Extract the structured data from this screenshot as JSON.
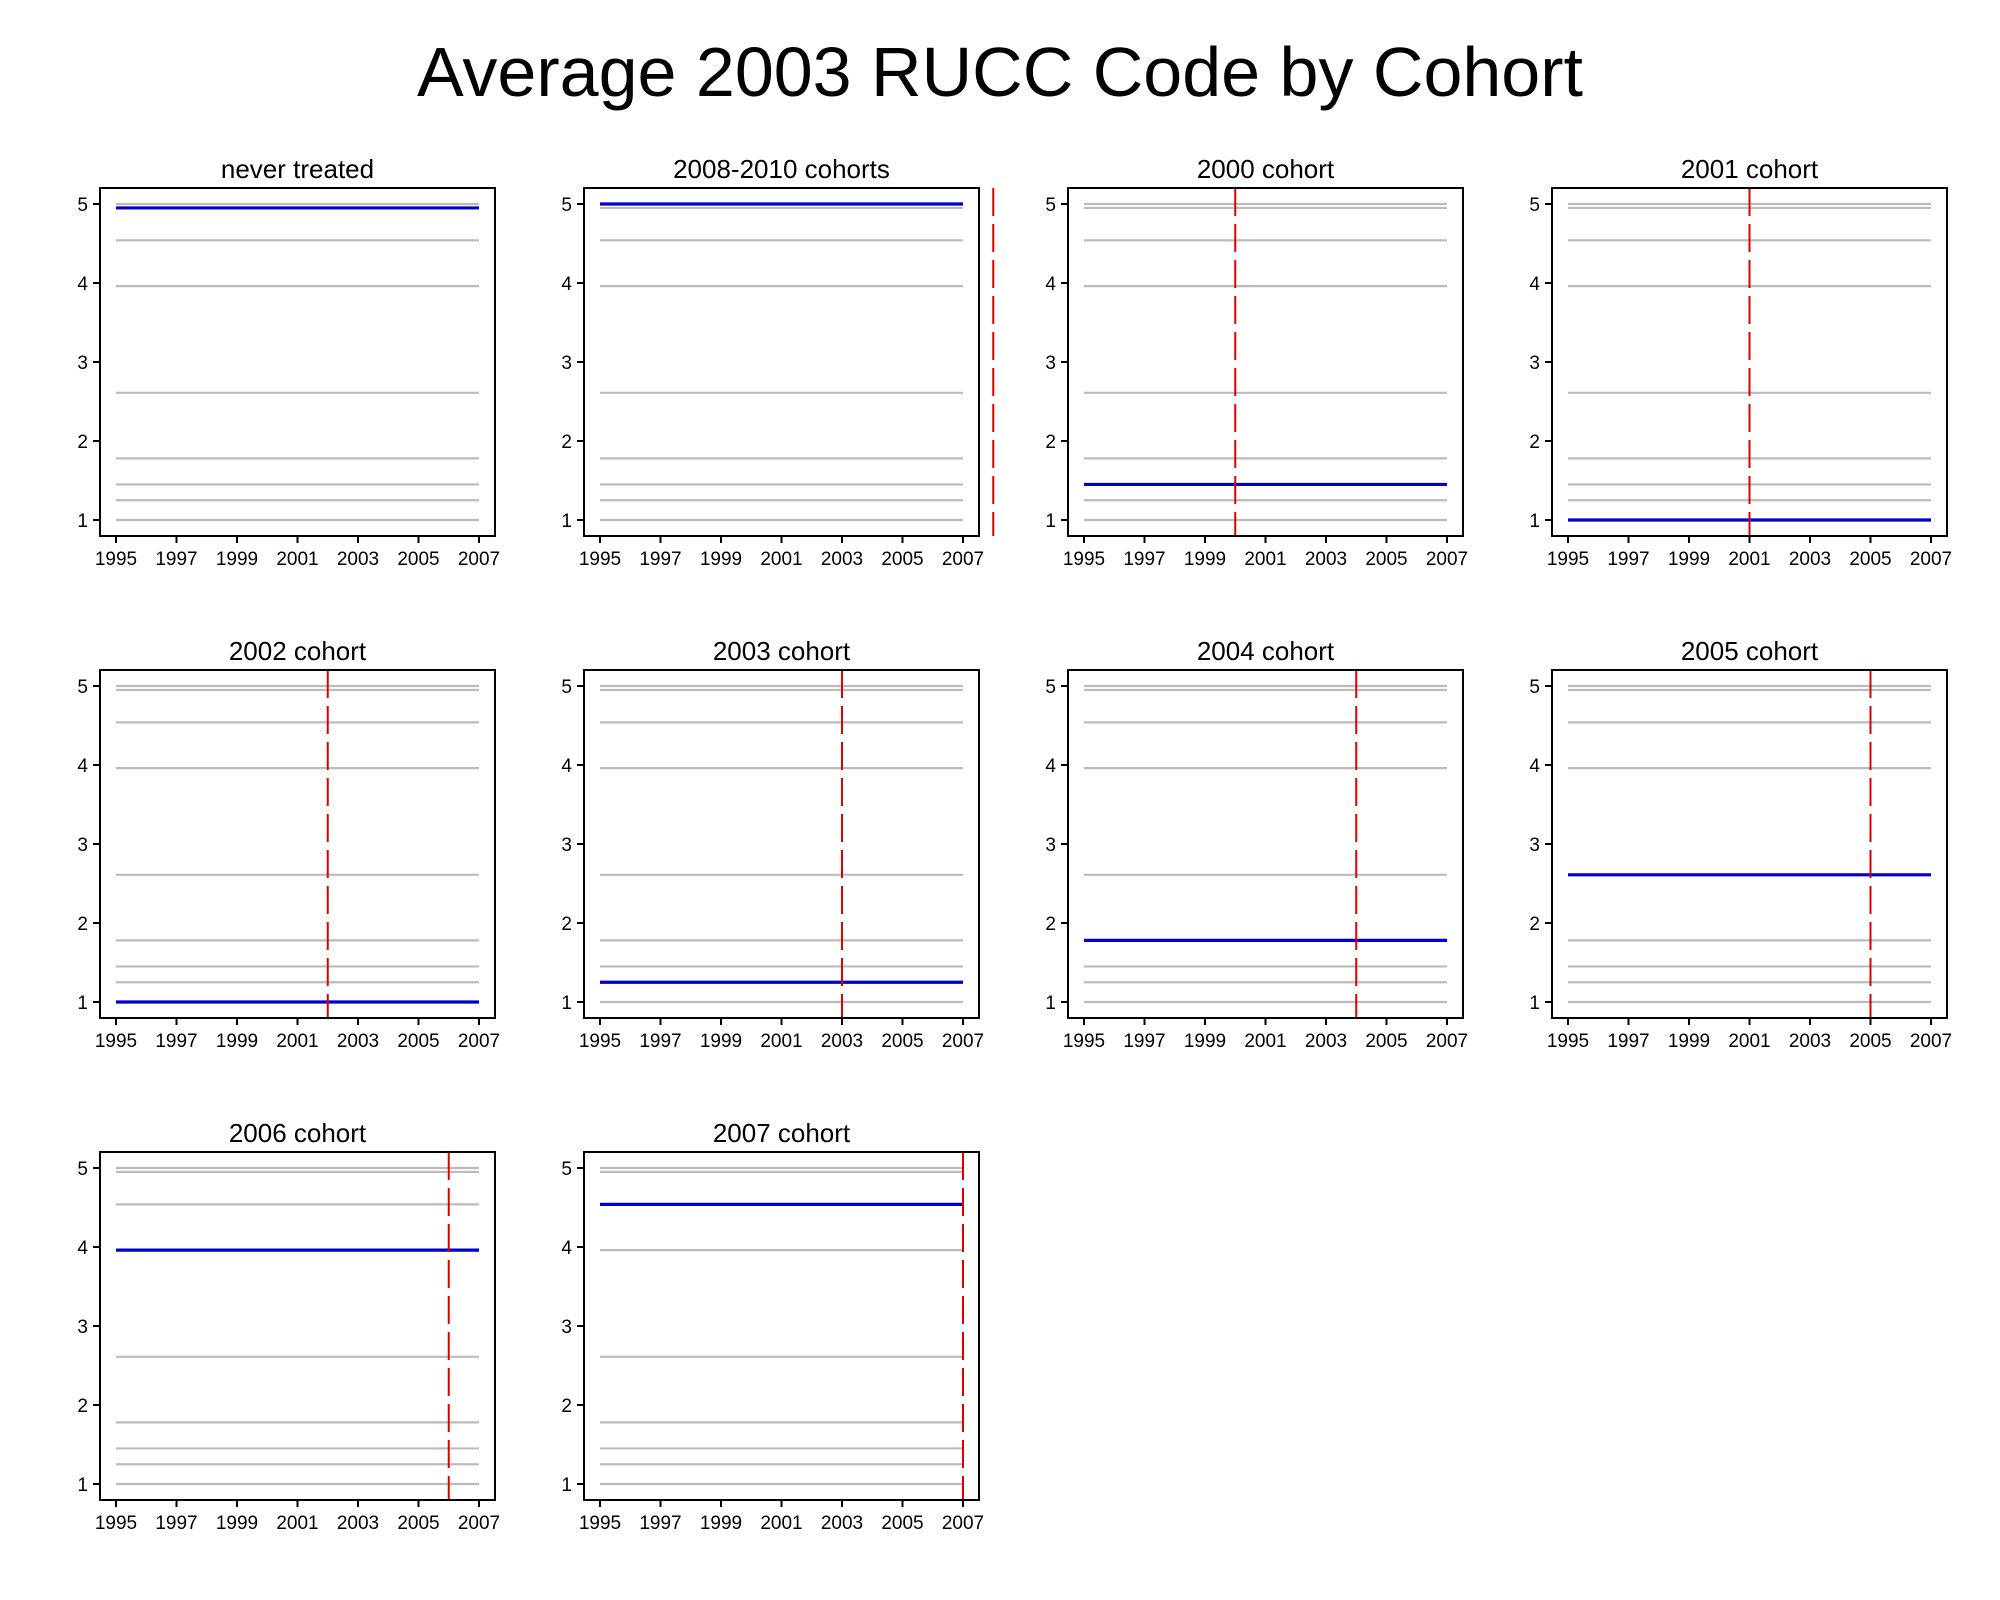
{
  "title": "Average 2003 RUCC Code by Cohort",
  "colors": {
    "series": "#0000cc",
    "reference": "#bbbbbb",
    "treatment": "#dd0000",
    "frame": "#000000"
  },
  "chart_data": [
    {
      "type": "line",
      "title": "never treated",
      "xlim": [
        1995,
        2007
      ],
      "ylim": [
        1,
        5
      ],
      "x_ticks": [
        "1995",
        "1997",
        "1999",
        "2001",
        "2003",
        "2005",
        "2007"
      ],
      "y_ticks": [
        "1",
        "2",
        "3",
        "4",
        "5"
      ],
      "series": [
        {
          "x": [
            1995,
            2007
          ],
          "y": [
            4.95,
            4.95
          ]
        }
      ],
      "treatment_year": null
    },
    {
      "type": "line",
      "title": "2008-2010 cohorts",
      "xlim": [
        1995,
        2007
      ],
      "ylim": [
        1,
        5
      ],
      "x_ticks": [
        "1995",
        "1997",
        "1999",
        "2001",
        "2003",
        "2005",
        "2007"
      ],
      "y_ticks": [
        "1",
        "2",
        "3",
        "4",
        "5"
      ],
      "series": [
        {
          "x": [
            1995,
            2007
          ],
          "y": [
            5.0,
            5.0
          ]
        }
      ],
      "treatment_year": 2008
    },
    {
      "type": "line",
      "title": "2000 cohort",
      "xlim": [
        1995,
        2007
      ],
      "ylim": [
        1,
        5
      ],
      "x_ticks": [
        "1995",
        "1997",
        "1999",
        "2001",
        "2003",
        "2005",
        "2007"
      ],
      "y_ticks": [
        "1",
        "2",
        "3",
        "4",
        "5"
      ],
      "series": [
        {
          "x": [
            1995,
            2007
          ],
          "y": [
            1.45,
            1.45
          ]
        }
      ],
      "treatment_year": 2000
    },
    {
      "type": "line",
      "title": "2001 cohort",
      "xlim": [
        1995,
        2007
      ],
      "ylim": [
        1,
        5
      ],
      "x_ticks": [
        "1995",
        "1997",
        "1999",
        "2001",
        "2003",
        "2005",
        "2007"
      ],
      "y_ticks": [
        "1",
        "2",
        "3",
        "4",
        "5"
      ],
      "series": [
        {
          "x": [
            1995,
            2007
          ],
          "y": [
            1.0,
            1.0
          ]
        }
      ],
      "treatment_year": 2001
    },
    {
      "type": "line",
      "title": "2002 cohort",
      "xlim": [
        1995,
        2007
      ],
      "ylim": [
        1,
        5
      ],
      "x_ticks": [
        "1995",
        "1997",
        "1999",
        "2001",
        "2003",
        "2005",
        "2007"
      ],
      "y_ticks": [
        "1",
        "2",
        "3",
        "4",
        "5"
      ],
      "series": [
        {
          "x": [
            1995,
            2007
          ],
          "y": [
            1.0,
            1.0
          ]
        }
      ],
      "treatment_year": 2002
    },
    {
      "type": "line",
      "title": "2003 cohort",
      "xlim": [
        1995,
        2007
      ],
      "ylim": [
        1,
        5
      ],
      "x_ticks": [
        "1995",
        "1997",
        "1999",
        "2001",
        "2003",
        "2005",
        "2007"
      ],
      "y_ticks": [
        "1",
        "2",
        "3",
        "4",
        "5"
      ],
      "series": [
        {
          "x": [
            1995,
            2007
          ],
          "y": [
            1.25,
            1.25
          ]
        }
      ],
      "treatment_year": 2003
    },
    {
      "type": "line",
      "title": "2004 cohort",
      "xlim": [
        1995,
        2007
      ],
      "ylim": [
        1,
        5
      ],
      "x_ticks": [
        "1995",
        "1997",
        "1999",
        "2001",
        "2003",
        "2005",
        "2007"
      ],
      "y_ticks": [
        "1",
        "2",
        "3",
        "4",
        "5"
      ],
      "series": [
        {
          "x": [
            1995,
            2007
          ],
          "y": [
            1.78,
            1.78
          ]
        }
      ],
      "treatment_year": 2004
    },
    {
      "type": "line",
      "title": "2005 cohort",
      "xlim": [
        1995,
        2007
      ],
      "ylim": [
        1,
        5
      ],
      "x_ticks": [
        "1995",
        "1997",
        "1999",
        "2001",
        "2003",
        "2005",
        "2007"
      ],
      "y_ticks": [
        "1",
        "2",
        "3",
        "4",
        "5"
      ],
      "series": [
        {
          "x": [
            1995,
            2007
          ],
          "y": [
            2.61,
            2.61
          ]
        }
      ],
      "treatment_year": 2005
    },
    {
      "type": "line",
      "title": "2006 cohort",
      "xlim": [
        1995,
        2007
      ],
      "ylim": [
        1,
        5
      ],
      "x_ticks": [
        "1995",
        "1997",
        "1999",
        "2001",
        "2003",
        "2005",
        "2007"
      ],
      "y_ticks": [
        "1",
        "2",
        "3",
        "4",
        "5"
      ],
      "series": [
        {
          "x": [
            1995,
            2007
          ],
          "y": [
            3.96,
            3.96
          ]
        }
      ],
      "treatment_year": 2006
    },
    {
      "type": "line",
      "title": "2007 cohort",
      "xlim": [
        1995,
        2007
      ],
      "ylim": [
        1,
        5
      ],
      "x_ticks": [
        "1995",
        "1997",
        "1999",
        "2001",
        "2003",
        "2005",
        "2007"
      ],
      "y_ticks": [
        "1",
        "2",
        "3",
        "4",
        "5"
      ],
      "series": [
        {
          "x": [
            1995,
            2007
          ],
          "y": [
            4.54,
            4.54
          ]
        }
      ],
      "treatment_year": 2007
    }
  ],
  "reference_levels": [
    5.0,
    4.95,
    4.54,
    3.96,
    2.61,
    1.78,
    1.45,
    1.25,
    1.0
  ]
}
